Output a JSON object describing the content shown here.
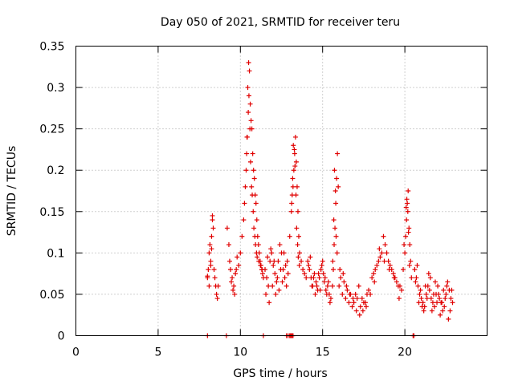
{
  "chart_data": {
    "type": "scatter",
    "title": "Day 050 of 2021, SRMTID for receiver teru",
    "xlabel": "GPS time / hours",
    "ylabel": "SRMTID / TECUs",
    "xlim": [
      0,
      25
    ],
    "ylim": [
      0,
      0.35
    ],
    "xticks": [
      0,
      5,
      10,
      15,
      20
    ],
    "xtick_labels": [
      "0",
      "5",
      "10",
      "15",
      "20"
    ],
    "yticks": [
      0,
      0.05,
      0.1,
      0.15,
      0.2,
      0.25,
      0.3,
      0.35
    ],
    "ytick_labels": [
      "0",
      "0.05",
      "0.1",
      "0.15",
      "0.2",
      "0.25",
      "0.3",
      "0.35"
    ],
    "grid": true,
    "marker": "+",
    "color": "#e00000",
    "series": [
      {
        "name": "SRMTID",
        "x": [
          8.0,
          8.05,
          8.1,
          8.15,
          8.2,
          8.25,
          8.3,
          8.35,
          8.4,
          8.45,
          8.5,
          8.55,
          8.6,
          8.65,
          8.2,
          8.25,
          8.3,
          8.1,
          8.0,
          9.2,
          9.3,
          9.35,
          9.4,
          9.5,
          9.6,
          9.7,
          9.8,
          9.9,
          10.0,
          9.45,
          9.55,
          9.65,
          9.75,
          10.1,
          10.2,
          10.25,
          10.3,
          10.35,
          10.4,
          10.45,
          10.5,
          10.55,
          10.6,
          10.65,
          10.7,
          10.75,
          10.8,
          10.85,
          10.9,
          10.95,
          11.0,
          11.05,
          11.1,
          11.15,
          11.2,
          11.25,
          11.3,
          11.35,
          11.4,
          10.38,
          10.42,
          10.48,
          10.52,
          10.58,
          10.62,
          10.68,
          10.72,
          10.78,
          10.82,
          10.88,
          10.92,
          10.98,
          11.02,
          11.12,
          11.22,
          11.32,
          11.5,
          11.6,
          11.7,
          11.8,
          11.9,
          12.0,
          12.1,
          12.2,
          12.3,
          12.4,
          12.5,
          12.6,
          12.7,
          12.8,
          12.9,
          11.55,
          11.75,
          11.95,
          12.15,
          12.35,
          12.55,
          12.75,
          11.65,
          11.85,
          12.05,
          12.25,
          12.45,
          12.65,
          12.85,
          13.0,
          13.1,
          13.15,
          13.2,
          13.25,
          13.3,
          13.35,
          13.4,
          13.45,
          13.5,
          13.55,
          13.6,
          13.7,
          13.8,
          13.9,
          14.0,
          13.12,
          13.18,
          13.22,
          13.28,
          13.32,
          13.38,
          13.42,
          13.48,
          13.52,
          13.58,
          14.1,
          14.2,
          14.3,
          14.4,
          14.5,
          14.6,
          14.7,
          14.8,
          14.9,
          15.0,
          15.1,
          15.2,
          15.3,
          15.4,
          15.5,
          14.15,
          14.35,
          14.55,
          14.75,
          14.95,
          15.15,
          15.35,
          14.25,
          14.45,
          14.65,
          14.85,
          15.05,
          15.25,
          15.45,
          15.6,
          15.65,
          15.7,
          15.75,
          15.8,
          15.85,
          15.9,
          15.95,
          15.68,
          15.72,
          15.78,
          15.82,
          15.62,
          15.88,
          16.0,
          16.2,
          16.4,
          16.6,
          16.8,
          17.0,
          17.2,
          17.4,
          17.6,
          17.8,
          16.1,
          16.3,
          16.5,
          16.7,
          16.9,
          17.1,
          17.3,
          17.5,
          17.7,
          16.05,
          16.25,
          16.45,
          16.65,
          16.85,
          17.05,
          17.25,
          17.45,
          17.65,
          18.0,
          18.2,
          18.4,
          18.6,
          18.8,
          19.0,
          19.2,
          19.4,
          19.6,
          19.8,
          18.1,
          18.3,
          18.5,
          18.7,
          18.9,
          19.1,
          19.3,
          19.5,
          19.7,
          17.9,
          18.15,
          18.45,
          18.75,
          19.05,
          19.35,
          19.65,
          19.9,
          20.0,
          20.05,
          20.1,
          20.15,
          20.2,
          20.25,
          20.3,
          20.35,
          20.4,
          20.08,
          20.12,
          20.18,
          20.22,
          19.95,
          20.28,
          20.6,
          20.7,
          20.8,
          20.9,
          21.0,
          21.1,
          21.2,
          21.3,
          21.4,
          21.5,
          21.6,
          21.7,
          21.8,
          21.9,
          22.0,
          22.1,
          22.2,
          22.3,
          22.4,
          22.5,
          22.6,
          22.7,
          22.8,
          22.9,
          20.75,
          20.95,
          21.15,
          21.35,
          21.55,
          21.75,
          21.95,
          22.15,
          22.35,
          22.55,
          22.75,
          20.65,
          20.85,
          21.05,
          21.25,
          21.45,
          21.65,
          21.85,
          22.05,
          22.25,
          22.45,
          22.65,
          22.85,
          8.0,
          9.15,
          11.4,
          12.8,
          12.9,
          13.0,
          13.05,
          13.1,
          13.15,
          13.2,
          20.5,
          20.55
        ],
        "y": [
          0.07,
          0.08,
          0.1,
          0.11,
          0.09,
          0.12,
          0.14,
          0.13,
          0.08,
          0.07,
          0.06,
          0.05,
          0.045,
          0.06,
          0.085,
          0.105,
          0.145,
          0.06,
          0.072,
          0.13,
          0.11,
          0.09,
          0.08,
          0.07,
          0.06,
          0.075,
          0.095,
          0.085,
          0.1,
          0.065,
          0.055,
          0.05,
          0.08,
          0.12,
          0.14,
          0.16,
          0.18,
          0.2,
          0.24,
          0.3,
          0.33,
          0.32,
          0.28,
          0.26,
          0.25,
          0.22,
          0.2,
          0.19,
          0.17,
          0.16,
          0.14,
          0.12,
          0.11,
          0.1,
          0.09,
          0.085,
          0.08,
          0.075,
          0.07,
          0.22,
          0.24,
          0.27,
          0.29,
          0.25,
          0.21,
          0.18,
          0.17,
          0.15,
          0.13,
          0.12,
          0.11,
          0.1,
          0.095,
          0.09,
          0.085,
          0.08,
          0.08,
          0.07,
          0.06,
          0.09,
          0.1,
          0.085,
          0.075,
          0.065,
          0.09,
          0.11,
          0.1,
          0.08,
          0.07,
          0.06,
          0.075,
          0.05,
          0.04,
          0.06,
          0.05,
          0.055,
          0.065,
          0.085,
          0.095,
          0.105,
          0.09,
          0.07,
          0.08,
          0.1,
          0.09,
          0.12,
          0.15,
          0.17,
          0.18,
          0.2,
          0.22,
          0.24,
          0.21,
          0.18,
          0.15,
          0.12,
          0.1,
          0.09,
          0.08,
          0.075,
          0.07,
          0.16,
          0.19,
          0.23,
          0.225,
          0.205,
          0.17,
          0.13,
          0.11,
          0.095,
          0.085,
          0.09,
          0.08,
          0.07,
          0.06,
          0.075,
          0.065,
          0.055,
          0.07,
          0.08,
          0.09,
          0.065,
          0.055,
          0.06,
          0.05,
          0.045,
          0.085,
          0.06,
          0.05,
          0.075,
          0.085,
          0.07,
          0.065,
          0.095,
          0.07,
          0.06,
          0.055,
          0.075,
          0.05,
          0.04,
          0.06,
          0.08,
          0.11,
          0.13,
          0.16,
          0.19,
          0.22,
          0.18,
          0.14,
          0.2,
          0.175,
          0.12,
          0.09,
          0.1,
          0.06,
          0.05,
          0.045,
          0.04,
          0.035,
          0.05,
          0.06,
          0.045,
          0.04,
          0.055,
          0.07,
          0.065,
          0.055,
          0.05,
          0.04,
          0.045,
          0.035,
          0.04,
          0.05,
          0.08,
          0.075,
          0.06,
          0.05,
          0.045,
          0.03,
          0.025,
          0.03,
          0.035,
          0.07,
          0.08,
          0.09,
          0.1,
          0.11,
          0.09,
          0.08,
          0.07,
          0.06,
          0.055,
          0.075,
          0.085,
          0.095,
          0.12,
          0.1,
          0.085,
          0.075,
          0.065,
          0.06,
          0.05,
          0.065,
          0.105,
          0.09,
          0.08,
          0.07,
          0.045,
          0.08,
          0.1,
          0.12,
          0.14,
          0.16,
          0.175,
          0.13,
          0.11,
          0.09,
          0.07,
          0.155,
          0.165,
          0.15,
          0.125,
          0.11,
          0.085,
          0.08,
          0.07,
          0.06,
          0.05,
          0.045,
          0.04,
          0.035,
          0.05,
          0.06,
          0.055,
          0.045,
          0.04,
          0.035,
          0.05,
          0.06,
          0.045,
          0.04,
          0.03,
          0.035,
          0.05,
          0.065,
          0.055,
          0.045,
          0.04,
          0.085,
          0.055,
          0.03,
          0.045,
          0.07,
          0.05,
          0.04,
          0.025,
          0.055,
          0.06,
          0.03,
          0.065,
          0.04,
          0.035,
          0.06,
          0.075,
          0.03,
          0.065,
          0.05,
          0.04,
          0.045,
          0.02,
          0.055,
          0.0,
          0.0,
          0.0,
          0.0,
          0.0,
          0.0,
          0.0,
          0.0,
          0.0,
          0.0,
          0.0,
          0.0
        ]
      }
    ]
  }
}
